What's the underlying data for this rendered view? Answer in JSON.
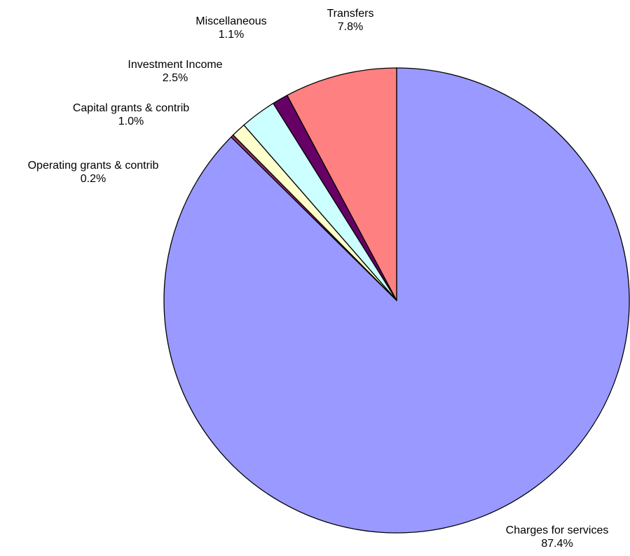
{
  "chart_data": {
    "type": "pie",
    "title": "",
    "start_angle_deg": 0,
    "direction": "clockwise",
    "slices": [
      {
        "label": "Charges for services",
        "value": 87.4,
        "display": "87.4%",
        "color": "#9999ff"
      },
      {
        "label": "Operating grants & contrib",
        "value": 0.2,
        "display": "0.2%",
        "color": "#993366"
      },
      {
        "label": "Capital grants & contrib",
        "value": 1.0,
        "display": "1.0%",
        "color": "#ffffcc"
      },
      {
        "label": "Investment Income",
        "value": 2.5,
        "display": "2.5%",
        "color": "#ccffff"
      },
      {
        "label": "Miscellaneous",
        "value": 1.1,
        "display": "1.1%",
        "color": "#660066"
      },
      {
        "label": "Transfers",
        "value": 7.8,
        "display": "7.8%",
        "color": "#ff8080"
      }
    ],
    "legend": "none",
    "border_color": "#000000"
  }
}
